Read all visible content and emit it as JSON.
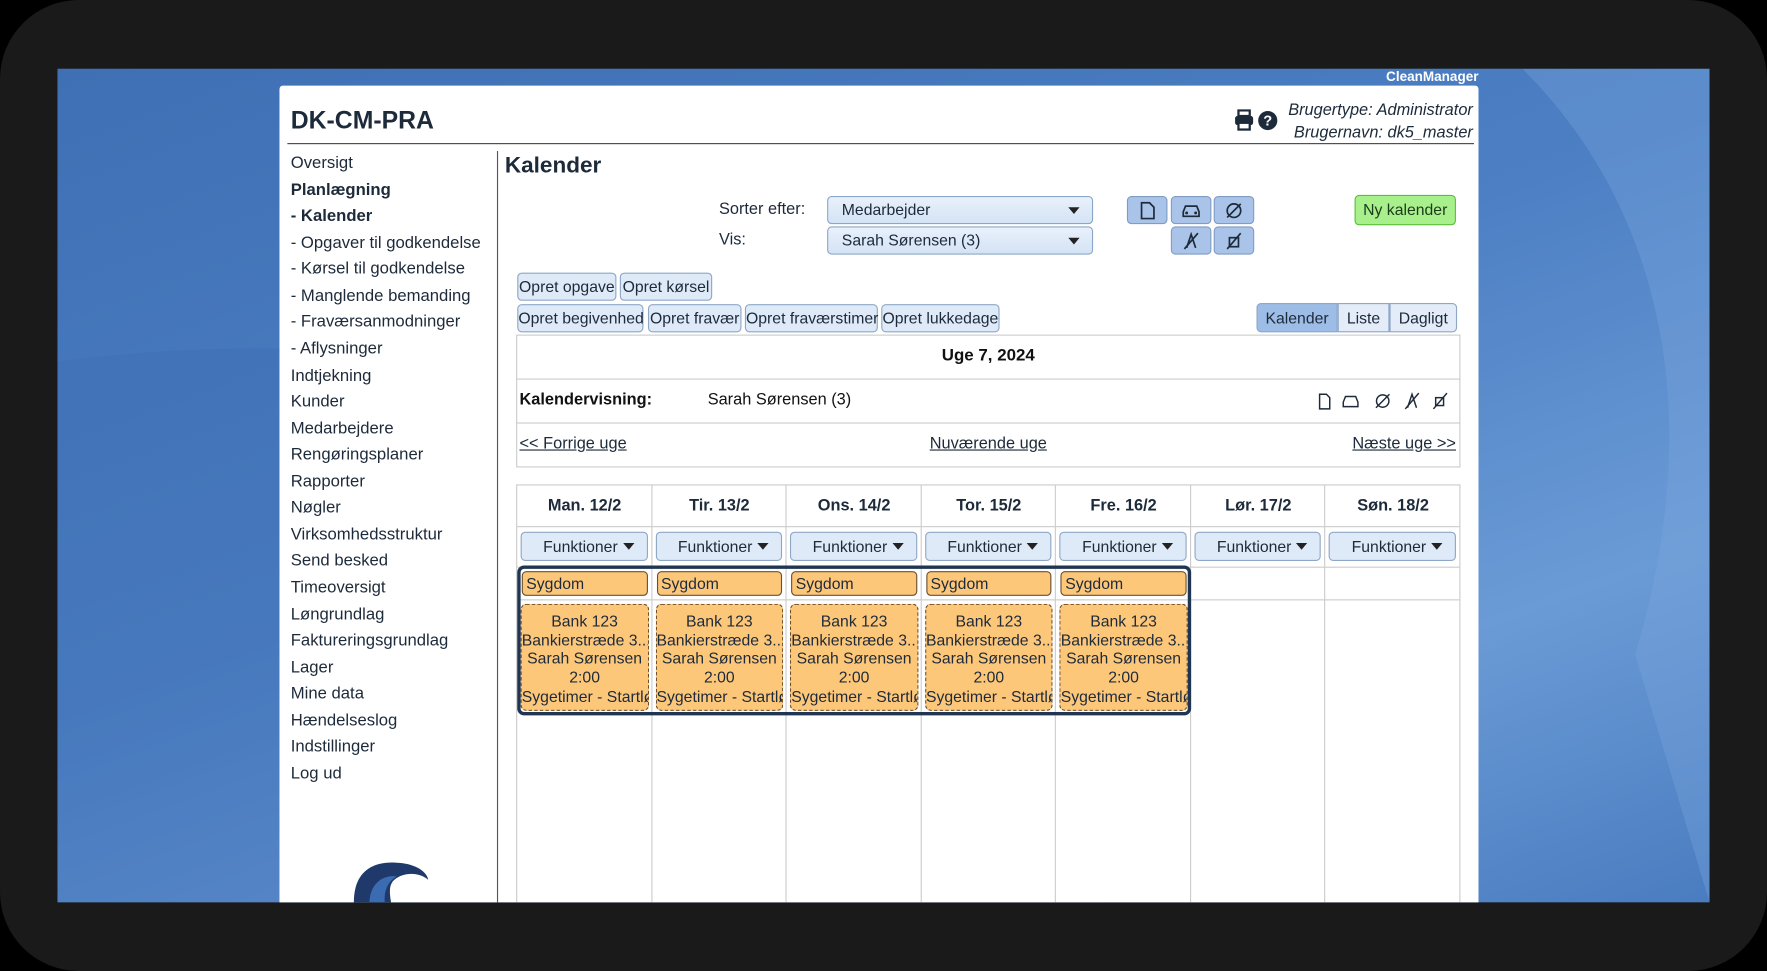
{
  "brand": "CleanManager",
  "header": {
    "title": "DK-CM-PRA",
    "user_type": "Brugertype: Administrator",
    "username": "Brugernavn: dk5_master"
  },
  "nav": [
    "Oversigt",
    "Planlægning",
    "- Kalender",
    "- Opgaver til godkendelse",
    "- Kørsel til godkendelse",
    "- Manglende bemanding",
    "- Fraværsanmodninger",
    "- Aflysninger",
    "Indtjekning",
    "Kunder",
    "Medarbejdere",
    "Rengøringsplaner",
    "Rapporter",
    "Nøgler",
    "Virksomhedsstruktur",
    "Send besked",
    "Timeoversigt",
    "Løngrundlag",
    "Faktureringsgrundlag",
    "Lager",
    "Mine data",
    "Hændelseslog",
    "Indstillinger",
    "Log ud"
  ],
  "page": {
    "title": "Kalender"
  },
  "filters": {
    "sort_label": "Sorter efter:",
    "sort_value": "Medarbejder",
    "show_label": "Vis:",
    "show_value": "Sarah Sørensen (3)"
  },
  "new_calendar": "Ny kalender",
  "actions": [
    [
      "Opret opgave",
      "Opret kørsel"
    ],
    [
      "Opret begivenhed",
      "Opret fravær",
      "Opret fraværstimer",
      "Opret lukkedage"
    ]
  ],
  "views": [
    "Kalender",
    "Liste",
    "Dagligt"
  ],
  "week": {
    "title": "Uge 7, 2024",
    "view_label": "Kalendervisning:",
    "view_value": "Sarah Sørensen (3)",
    "prev": "<< Forrige uge",
    "current": "Nuværende uge",
    "next": "Næste uge >>"
  },
  "days": [
    {
      "label": "Man. 12/2",
      "menu": "Funktioner",
      "all_day": "Sygdom",
      "event": [
        "Bank 123",
        "Bankierstræde 3...",
        "Sarah Sørensen",
        "2:00",
        "Sygetimer - Startløn"
      ]
    },
    {
      "label": "Tir. 13/2",
      "menu": "Funktioner",
      "all_day": "Sygdom",
      "event": [
        "Bank 123",
        "Bankierstræde 3...",
        "Sarah Sørensen",
        "2:00",
        "Sygetimer - Startløn"
      ]
    },
    {
      "label": "Ons. 14/2",
      "menu": "Funktioner",
      "all_day": "Sygdom",
      "event": [
        "Bank 123",
        "Bankierstræde 3...",
        "Sarah Sørensen",
        "2:00",
        "Sygetimer - Startløn"
      ]
    },
    {
      "label": "Tor. 15/2",
      "menu": "Funktioner",
      "all_day": "Sygdom",
      "event": [
        "Bank 123",
        "Bankierstræde 3...",
        "Sarah Sørensen",
        "2:00",
        "Sygetimer - Startløn"
      ]
    },
    {
      "label": "Fre. 16/2",
      "menu": "Funktioner",
      "all_day": "Sygdom",
      "event": [
        "Bank 123",
        "Bankierstræde 3...",
        "Sarah Sørensen",
        "2:00",
        "Sygetimer - Startløn"
      ]
    },
    {
      "label": "Lør. 17/2",
      "menu": "Funktioner"
    },
    {
      "label": "Søn. 18/2",
      "menu": "Funktioner"
    }
  ]
}
